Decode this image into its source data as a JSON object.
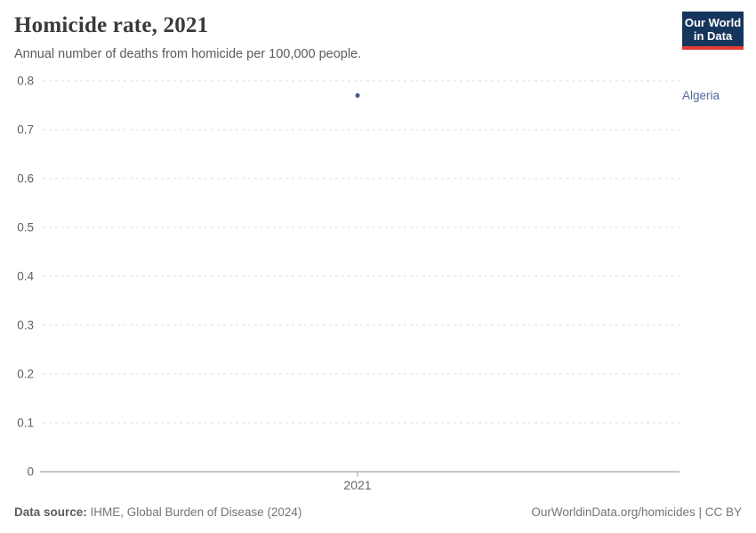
{
  "header": {
    "title": "Homicide rate, 2021",
    "subtitle": "Annual number of deaths from homicide per 100,000 people."
  },
  "logo": {
    "line1": "Our World",
    "line2": "in Data",
    "background": "#16355c",
    "accent": "#e23d33"
  },
  "footer": {
    "source_label": "Data source:",
    "source_text": " IHME, Global Burden of Disease (2024)",
    "link_text": "OurWorldinData.org/homicides | CC BY"
  },
  "chart_data": {
    "type": "scatter",
    "title": "Homicide rate, 2021",
    "x": [
      2021
    ],
    "xtick_labels": [
      "2021"
    ],
    "series": [
      {
        "name": "Algeria",
        "values": [
          0.77
        ],
        "color": "#3d5a8b",
        "label_color": "#4c6a9c"
      }
    ],
    "xlabel": "",
    "ylabel": "",
    "ylim": [
      0,
      0.8
    ],
    "yticks": [
      0,
      0.1,
      0.2,
      0.3,
      0.4,
      0.5,
      0.6,
      0.7,
      0.8
    ],
    "grid": "horizontal-dashed",
    "gridline_color": "#dedede",
    "axis_line_color": "#8f8f8f",
    "tick_label_color": "#606060",
    "legend_position": "right-of-point"
  }
}
